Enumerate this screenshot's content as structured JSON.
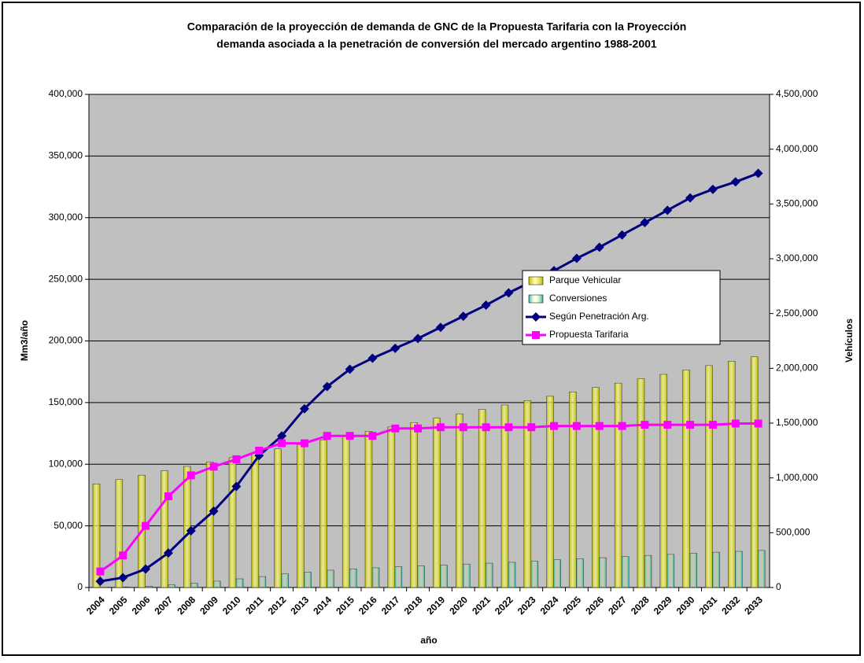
{
  "chart_data": {
    "type": "bar_line",
    "title": "Comparación de la proyección de demanda de GNC de la Propuesta Tarifaria con la Proyección",
    "subtitle": "demanda asociada a la penetración de conversión del mercado argentino 1988-2001",
    "x_label": "año",
    "y_label": "Mm3/año",
    "y2_label": "Vehículos",
    "categories": [
      "2004",
      "2005",
      "2006",
      "2007",
      "2008",
      "2009",
      "2010",
      "2011",
      "2012",
      "2013",
      "2014",
      "2015",
      "2016",
      "2017",
      "2018",
      "2019",
      "2020",
      "2021",
      "2022",
      "2023",
      "2024",
      "2025",
      "2026",
      "2027",
      "2028",
      "2029",
      "2030",
      "2031",
      "2032",
      "2033"
    ],
    "series": [
      {
        "name": "Parque Vehicular",
        "kind": "bar",
        "axis": "y2",
        "color": "#b8b800",
        "values": [
          945000,
          985000,
          1025000,
          1065000,
          1105000,
          1145000,
          1185000,
          1225000,
          1265000,
          1305000,
          1345000,
          1385000,
          1425000,
          1465000,
          1505000,
          1545000,
          1585000,
          1625000,
          1665000,
          1705000,
          1745000,
          1785000,
          1825000,
          1865000,
          1905000,
          1945000,
          1985000,
          2025000,
          2065000,
          2105000
        ]
      },
      {
        "name": "Conversiones",
        "kind": "bar",
        "axis": "y2",
        "color": "#20b0b0",
        "values": [
          2000,
          5000,
          12000,
          25000,
          40000,
          58000,
          79000,
          100000,
          124000,
          140000,
          158000,
          170000,
          180000,
          190000,
          197000,
          205000,
          214000,
          222000,
          230000,
          240000,
          253000,
          262000,
          272000,
          282000,
          293000,
          302000,
          312000,
          322000,
          330000,
          338000
        ]
      },
      {
        "name": "Según Penetración Arg.",
        "kind": "line",
        "marker": "diamond",
        "color": "#000080",
        "values": [
          5000,
          8000,
          15000,
          28000,
          46000,
          62000,
          82000,
          107000,
          123000,
          145000,
          163000,
          177000,
          186000,
          194000,
          202000,
          211000,
          220000,
          229000,
          239000,
          248000,
          257000,
          267000,
          276000,
          286000,
          296000,
          306000,
          316000,
          323000,
          329000,
          336000
        ]
      },
      {
        "name": "Propuesta Tarifaria",
        "kind": "line",
        "marker": "square",
        "color": "#ff00ff",
        "values": [
          13000,
          26000,
          50000,
          74000,
          91000,
          98000,
          104000,
          111000,
          117000,
          117000,
          123000,
          123000,
          123000,
          129000,
          129000,
          130000,
          130000,
          130000,
          130000,
          130000,
          131000,
          131000,
          131000,
          131000,
          132000,
          132000,
          132000,
          132000,
          133000,
          133000
        ]
      }
    ],
    "ylim": [
      0,
      400000
    ],
    "yticks": [
      0,
      {
        "value": 50000,
        "label": "50,000"
      },
      {
        "value": 100000,
        "label": "100,000"
      },
      {
        "value": 150000,
        "label": "150,000"
      },
      {
        "value": 200000,
        "label": "200,000"
      },
      {
        "value": 250000,
        "label": "250,000"
      },
      {
        "value": 300000,
        "label": "300,000"
      },
      {
        "value": 350000,
        "label": "350,000"
      },
      {
        "value": 400000,
        "label": "400,000"
      }
    ],
    "y2lim": [
      0,
      4500000
    ],
    "y2ticks": [
      0,
      {
        "value": 500000,
        "label": "500,000"
      },
      {
        "value": 1000000,
        "label": "1,000,000"
      },
      {
        "value": 1500000,
        "label": "1,500,000"
      },
      {
        "value": 2000000,
        "label": "2,000,000"
      },
      {
        "value": 2500000,
        "label": "2,500,000"
      },
      {
        "value": 3000000,
        "label": "3,000,000"
      },
      {
        "value": 3500000,
        "label": "3,500,000"
      },
      {
        "value": 4000000,
        "label": "4,000,000"
      },
      {
        "value": 4500000,
        "label": "4,500,000"
      }
    ],
    "grid": true,
    "plot_background": "#c0c0c0",
    "legend": "right"
  }
}
